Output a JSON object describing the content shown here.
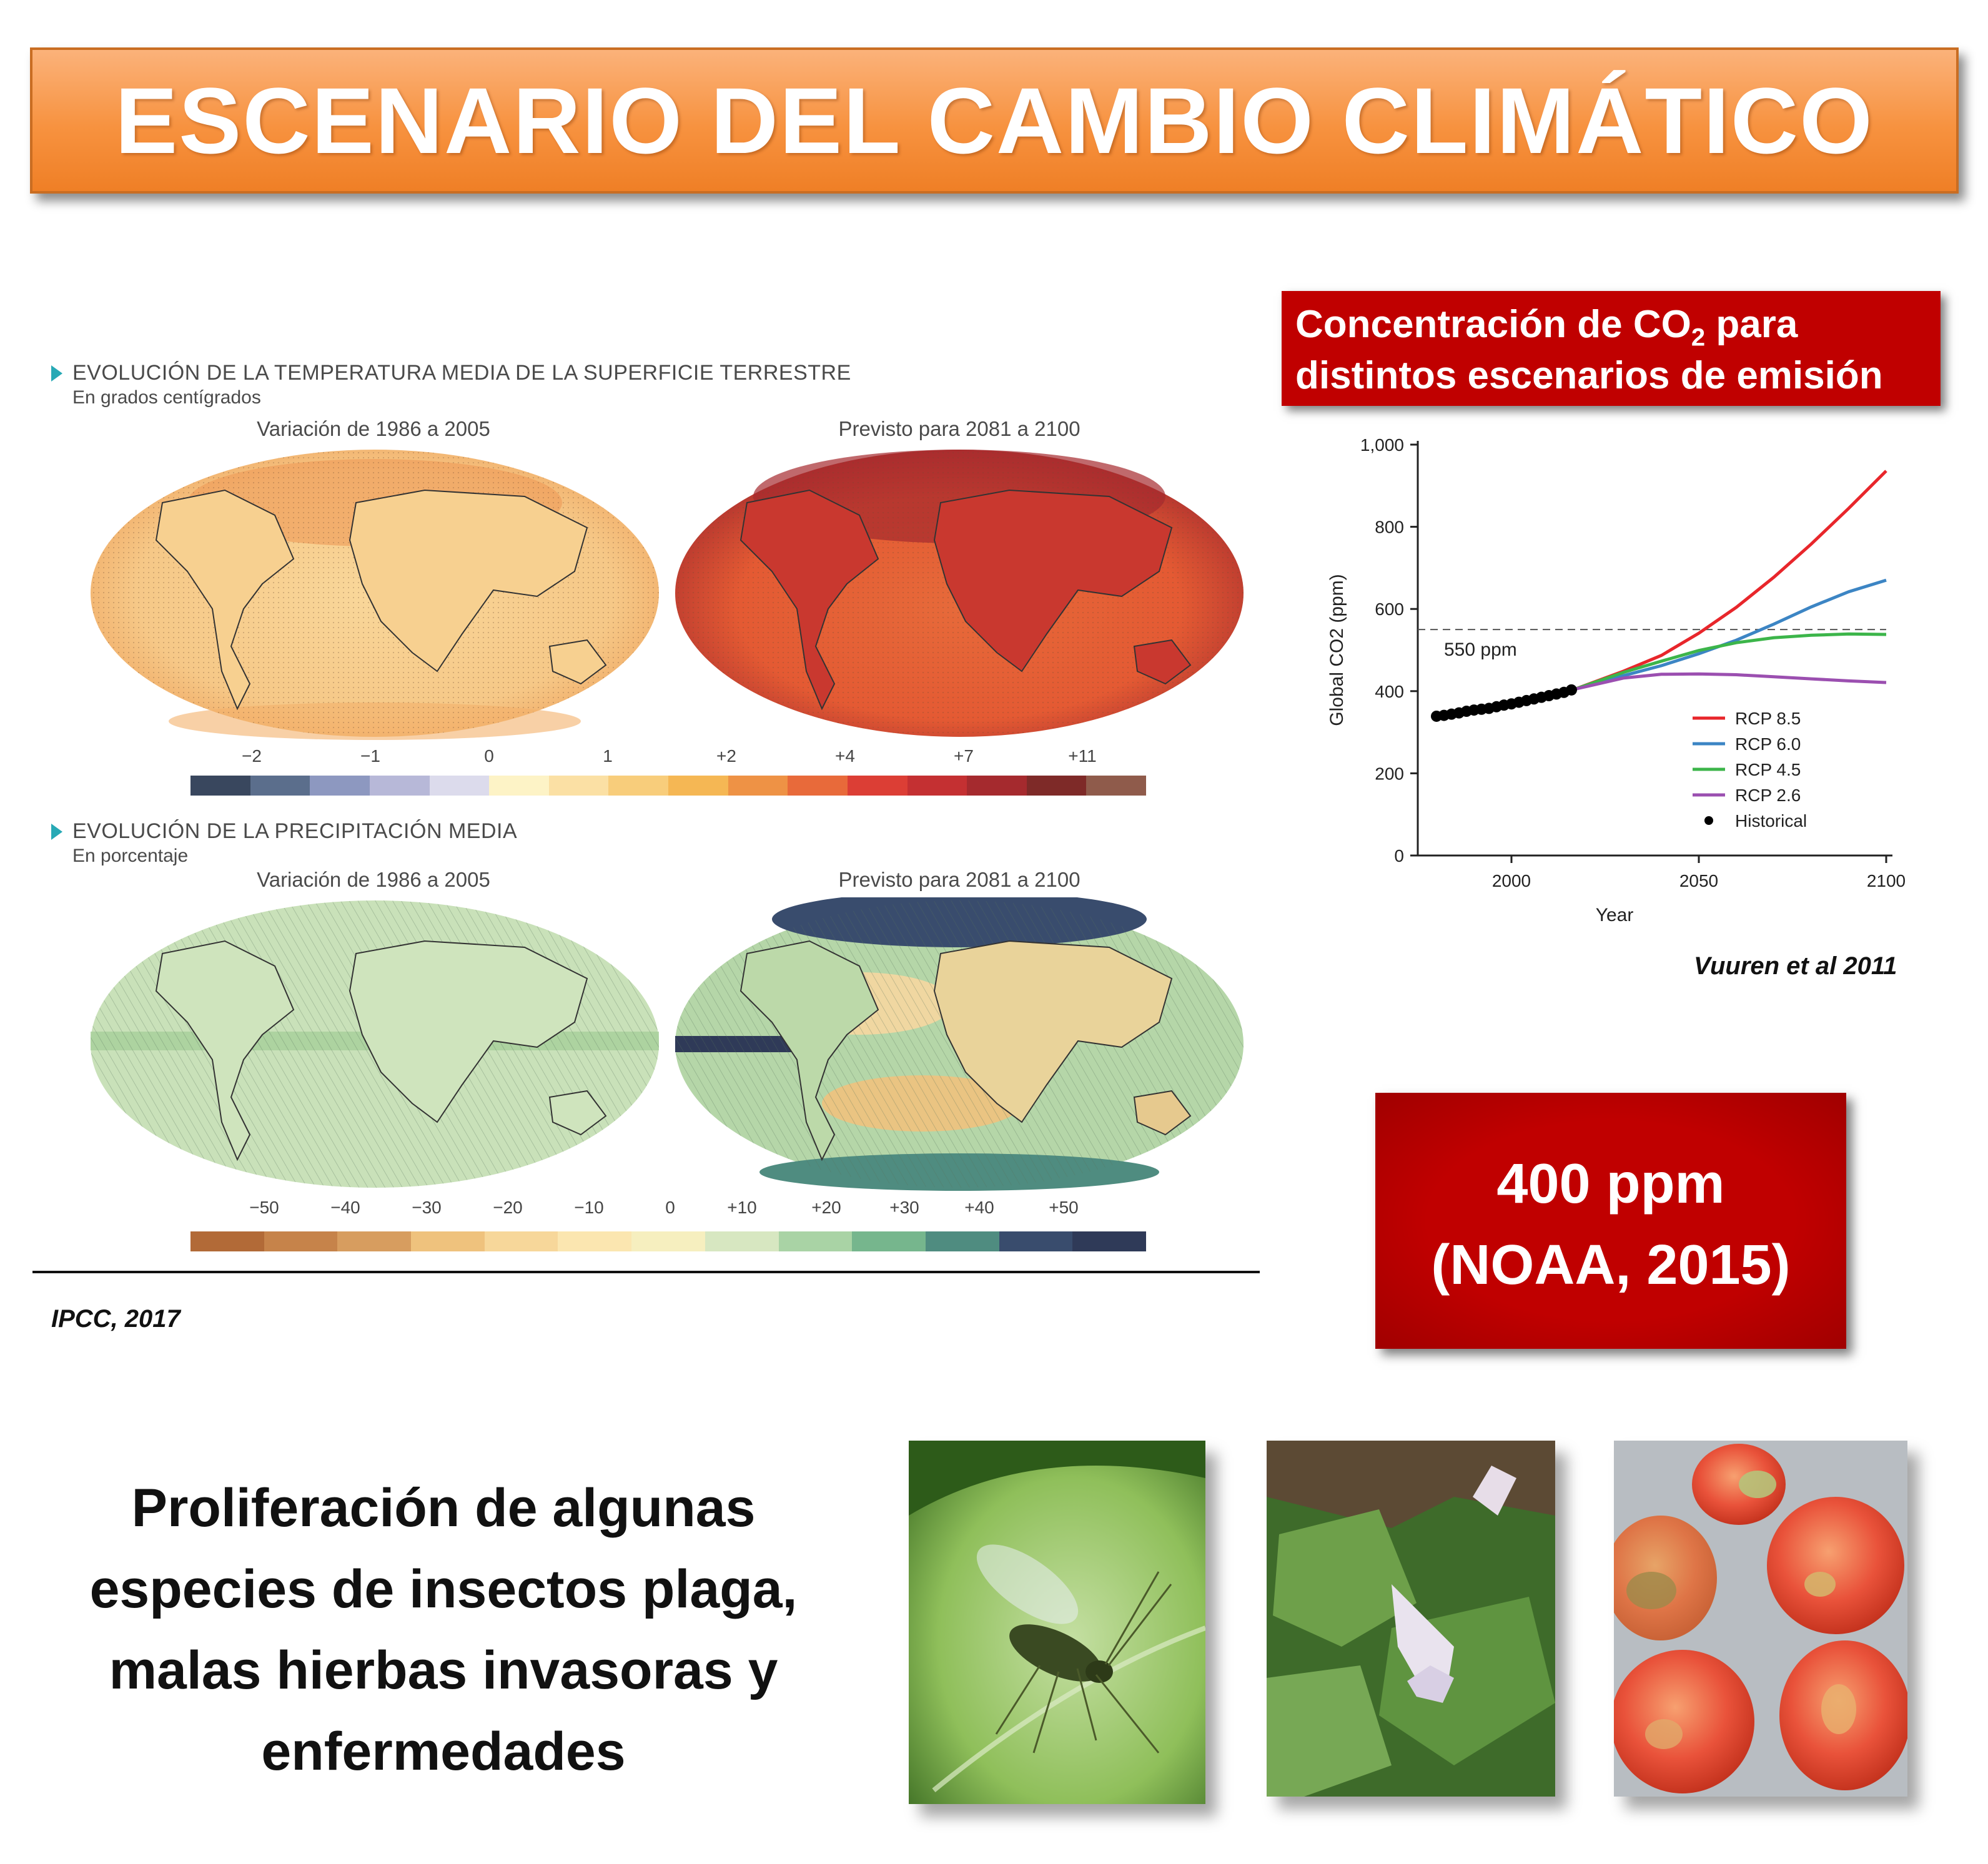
{
  "title": "ESCENARIO DEL CAMBIO CLIMÁTICO",
  "ipcc": {
    "temp_heading": "EVOLUCIÓN DE LA TEMPERATURA MEDIA DE LA SUPERFICIE TERRESTRE",
    "temp_units": "En grados centígrados",
    "precip_heading": "EVOLUCIÓN DE LA PRECIPITACIÓN MEDIA",
    "precip_units": "En porcentaje",
    "caption_left": "Variación de 1986 a 2005",
    "caption_right": "Previsto para 2081 a 2100",
    "temp_ticks": [
      "−2",
      "−1",
      "0",
      "1",
      "+2",
      "+4",
      "+7",
      "+11"
    ],
    "temp_colors": [
      "#39475e",
      "#5b6e8c",
      "#8d98c0",
      "#b7b8d8",
      "#dcdbec",
      "#fdf3c6",
      "#fbe0a4",
      "#f8cd7b",
      "#f5b754",
      "#ee9245",
      "#e86a3a",
      "#dc3e35",
      "#c43032",
      "#a52a2e",
      "#7e2a28",
      "#8f5b4b"
    ],
    "precip_ticks": [
      "−50",
      "−40",
      "−30",
      "−20",
      "−10",
      "0",
      "+10",
      "+20",
      "+30",
      "+40",
      "+50"
    ],
    "precip_colors": [
      "#b26a37",
      "#c6834a",
      "#d79d5f",
      "#efc27d",
      "#f7d79a",
      "#fbe6b0",
      "#f6efbf",
      "#d7e7c1",
      "#a9d3a5",
      "#76b68d",
      "#4f8c80",
      "#394c6d",
      "#2f3a58"
    ],
    "source": "IPCC, 2017"
  },
  "co2_box": {
    "line1_pre": "Concentración de CO",
    "line1_sub": "2",
    "line1_post": " para",
    "line2": "distintos escenarios de emisión"
  },
  "chart_data": {
    "type": "line",
    "xlabel": "Year",
    "ylabel": "Global CO2 (ppm)",
    "xlim": [
      1975,
      2100
    ],
    "ylim": [
      0,
      1000
    ],
    "x_ticks": [
      "2000",
      "2050",
      "2100"
    ],
    "y_ticks": [
      "0",
      "200",
      "400",
      "600",
      "800",
      "1,000"
    ],
    "reference_line": {
      "y": 550,
      "label": "550 ppm"
    },
    "historical": {
      "name": "Historical",
      "color": "#000000",
      "x": [
        1980,
        1982,
        1984,
        1986,
        1988,
        1990,
        1992,
        1994,
        1996,
        1998,
        2000,
        2002,
        2004,
        2006,
        2008,
        2010,
        2012,
        2014,
        2016
      ],
      "y": [
        339,
        341,
        344,
        347,
        351,
        354,
        356,
        358,
        362,
        366,
        369,
        373,
        377,
        381,
        385,
        389,
        393,
        397,
        403
      ]
    },
    "series": [
      {
        "name": "RCP 8.5",
        "color": "#e8262b",
        "x": [
          2017,
          2030,
          2040,
          2050,
          2060,
          2070,
          2080,
          2090,
          2100
        ],
        "y": [
          405,
          449,
          487,
          541,
          604,
          677,
          758,
          845,
          936
        ]
      },
      {
        "name": "RCP 6.0",
        "color": "#3c85c4",
        "x": [
          2017,
          2030,
          2040,
          2050,
          2060,
          2070,
          2080,
          2090,
          2100
        ],
        "y": [
          405,
          438,
          462,
          491,
          524,
          563,
          605,
          642,
          670
        ]
      },
      {
        "name": "RCP 4.5",
        "color": "#3cb54a",
        "x": [
          2017,
          2030,
          2040,
          2050,
          2060,
          2070,
          2080,
          2090,
          2100
        ],
        "y": [
          405,
          446,
          473,
          499,
          518,
          530,
          536,
          539,
          538
        ]
      },
      {
        "name": "RCP 2.6",
        "color": "#9b4fb0",
        "x": [
          2017,
          2030,
          2040,
          2050,
          2060,
          2070,
          2080,
          2090,
          2100
        ],
        "y": [
          405,
          432,
          441,
          442,
          440,
          435,
          430,
          425,
          421
        ]
      }
    ],
    "legend_position": "lower-right"
  },
  "chart_source": "Vuuren et al 2011",
  "ppm_box": {
    "line1": "400 ppm",
    "line2": "(NOAA, 2015)"
  },
  "bottom_text": [
    "Proliferación de algunas",
    "especies de insectos plaga,",
    "malas hierbas invasoras y",
    "enfermedades"
  ]
}
